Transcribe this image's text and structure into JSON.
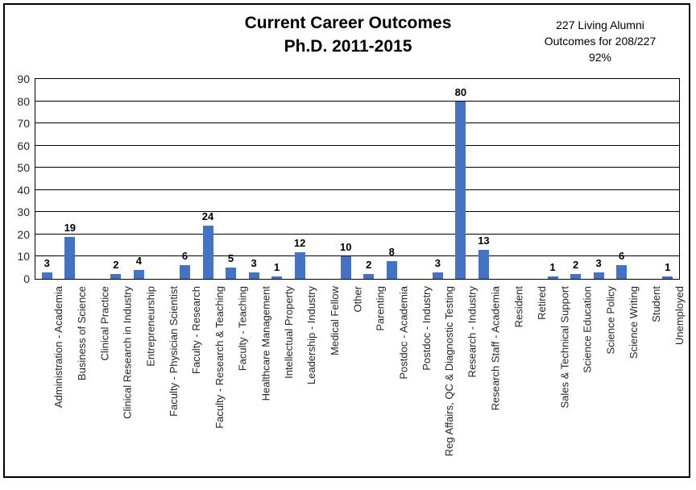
{
  "chart": {
    "title_line1": "Current Career Outcomes",
    "title_line2": "Ph.D. 2011-2015",
    "annotation_line1": "227 Living Alumni",
    "annotation_line2": "Outcomes for 208/227",
    "annotation_line3": "92%"
  },
  "chart_data": {
    "type": "bar",
    "title": "Current Career Outcomes Ph.D. 2011-2015",
    "annotation": "227 Living Alumni Outcomes for 208/227 92%",
    "categories": [
      "Administration - Academia",
      "Business of Science",
      "Clinical Practice",
      "Clinical Research in Industry",
      "Entrepreneurship",
      "Faculty - Physician Scientist",
      "Faculty - Research",
      "Faculty - Research & Teaching",
      "Faculty - Teaching",
      "Healthcare Management",
      "Intellectual Property",
      "Leadership - Industry",
      "Medical Fellow",
      "Other",
      "Parenting",
      "Postdoc - Academia",
      "Postdoc - Industry",
      "Reg Affairs, QC & Diagnostic Testing",
      "Research - Industry",
      "Research Staff - Academia",
      "Resident",
      "Retired",
      "Sales & Technical Support",
      "Science Education",
      "Science Policy",
      "Science Writing",
      "Student",
      "Unemployed"
    ],
    "values": [
      3,
      19,
      0,
      2,
      4,
      0,
      6,
      24,
      5,
      3,
      1,
      12,
      0,
      10,
      2,
      8,
      0,
      3,
      80,
      13,
      0,
      0,
      1,
      2,
      3,
      6,
      0,
      1
    ],
    "xlabel": "",
    "ylabel": "",
    "ylim": [
      0,
      90
    ],
    "yticks": [
      0,
      10,
      20,
      30,
      40,
      50,
      60,
      70,
      80,
      90
    ],
    "ytick_step": 10,
    "grid": "horizontal",
    "legend": "none",
    "data_labels": true,
    "bar_color": "#4472C4",
    "gridline_color": "#000000",
    "plot_border_color": "#000000"
  }
}
